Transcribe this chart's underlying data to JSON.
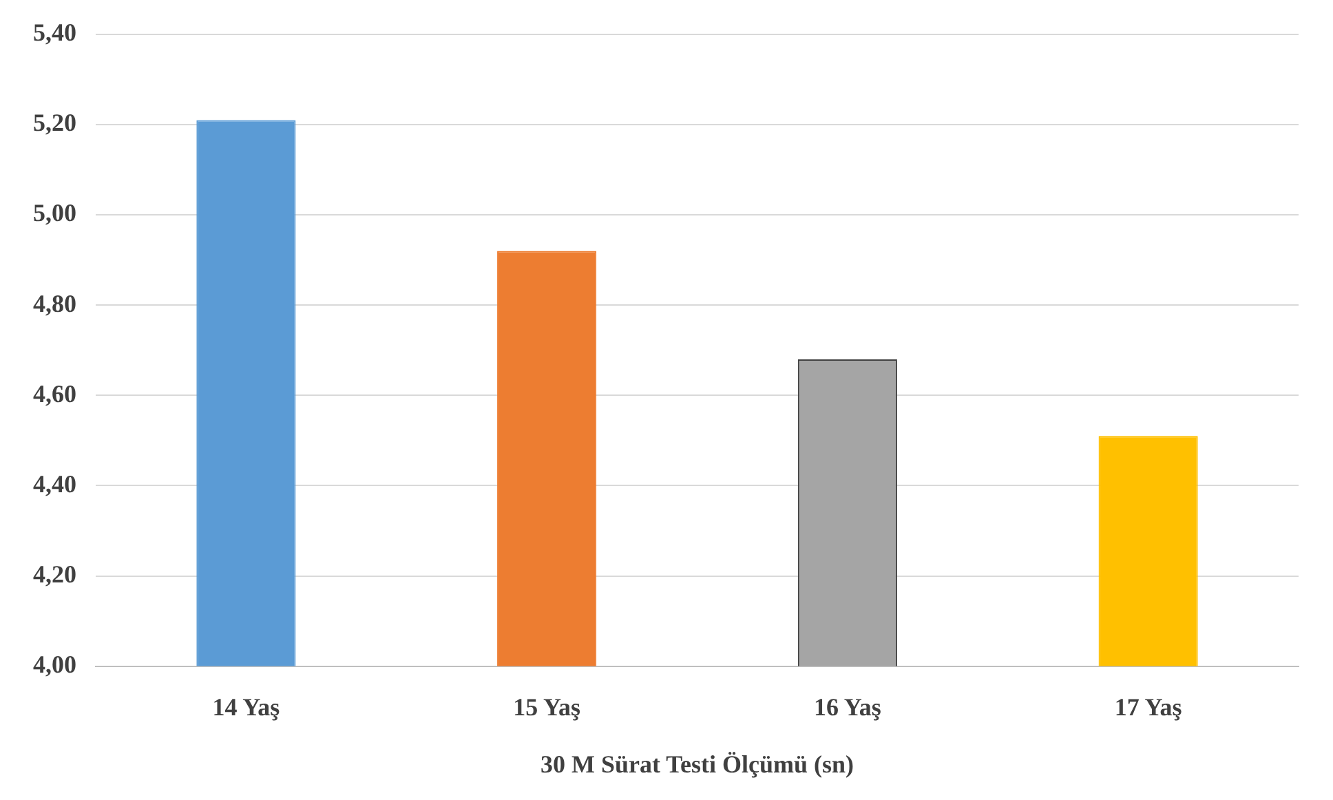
{
  "chart_data": {
    "type": "bar",
    "xlabel": "30 M Sürat Testi Ölçümü (sn)",
    "categories": [
      "14 Yaş",
      "15 Yaş",
      "16 Yaş",
      "17 Yaş"
    ],
    "values": [
      5.21,
      4.92,
      4.68,
      4.51
    ],
    "colors": [
      "#5b9bd5",
      "#ed7d31",
      "#a5a5a5",
      "#ffc000"
    ],
    "ylim": [
      4,
      5.4
    ],
    "yticks": [
      {
        "value": 4,
        "label": "4,00"
      },
      {
        "value": 4.2,
        "label": "4,20"
      },
      {
        "value": 4.4,
        "label": "4,40"
      },
      {
        "value": 4.6,
        "label": "4,60"
      },
      {
        "value": 4.8,
        "label": "4,80"
      },
      {
        "value": 5,
        "label": "5,00"
      },
      {
        "value": 5.2,
        "label": "5,20"
      },
      {
        "value": 5.4,
        "label": "5,40"
      }
    ],
    "grid": "y",
    "legend": false
  }
}
